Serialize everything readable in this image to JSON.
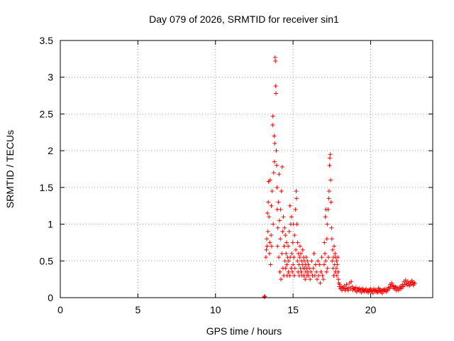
{
  "chart_data": {
    "type": "scatter",
    "title": "Day 079 of 2026, SRMTID for receiver sin1",
    "xlabel": "GPS time / hours",
    "ylabel": "SRMTID / TECUs",
    "xlim": [
      0,
      24
    ],
    "ylim": [
      0,
      3.5
    ],
    "x_ticks": [
      0,
      5,
      10,
      15,
      20
    ],
    "y_ticks": [
      0,
      0.5,
      1,
      1.5,
      2,
      2.5,
      3,
      3.5
    ],
    "x_tick_labels": [
      "0",
      "5",
      "10",
      "15",
      "20"
    ],
    "y_tick_labels": [
      "0",
      "0.5",
      "1",
      "1.5",
      "2",
      "2.5",
      "3",
      "3.5"
    ],
    "grid": true,
    "marker": "+",
    "marker_color": "#ff0000",
    "series": [
      {
        "name": "sin1",
        "points": [
          [
            13.15,
            0.01
          ],
          [
            13.18,
            0.02
          ],
          [
            13.25,
            0.55
          ],
          [
            13.28,
            0.65
          ],
          [
            13.3,
            0.8
          ],
          [
            13.32,
            0.7
          ],
          [
            13.35,
            1.15
          ],
          [
            13.38,
            0.9
          ],
          [
            13.4,
            1.3
          ],
          [
            13.42,
            1.58
          ],
          [
            13.45,
            1.1
          ],
          [
            13.48,
            0.6
          ],
          [
            13.5,
            0.75
          ],
          [
            13.52,
            1.6
          ],
          [
            13.55,
            0.45
          ],
          [
            13.58,
            0.85
          ],
          [
            13.6,
            1.25
          ],
          [
            13.62,
            0.7
          ],
          [
            13.65,
            1.45
          ],
          [
            13.68,
            2.35
          ],
          [
            13.7,
            2.47
          ],
          [
            13.72,
            1.0
          ],
          [
            13.75,
            1.7
          ],
          [
            13.78,
            2.2
          ],
          [
            13.8,
            1.85
          ],
          [
            13.82,
            2.1
          ],
          [
            13.84,
            3.27
          ],
          [
            13.86,
            3.22
          ],
          [
            13.88,
            2.88
          ],
          [
            13.9,
            2.78
          ],
          [
            13.92,
            2.0
          ],
          [
            13.94,
            1.8
          ],
          [
            13.96,
            1.5
          ],
          [
            13.98,
            1.2
          ],
          [
            14.0,
            0.7
          ],
          [
            14.02,
            0.95
          ],
          [
            14.05,
            1.3
          ],
          [
            14.08,
            0.55
          ],
          [
            14.1,
            1.68
          ],
          [
            14.12,
            1.05
          ],
          [
            14.15,
            0.35
          ],
          [
            14.18,
            0.8
          ],
          [
            14.2,
            1.2
          ],
          [
            14.22,
            0.25
          ],
          [
            14.25,
            1.45
          ],
          [
            14.28,
            0.6
          ],
          [
            14.3,
            1.78
          ],
          [
            14.32,
            0.9
          ],
          [
            14.35,
            0.4
          ],
          [
            14.38,
            1.1
          ],
          [
            14.4,
            0.3
          ],
          [
            14.42,
            0.7
          ],
          [
            14.45,
            0.95
          ],
          [
            14.48,
            0.5
          ],
          [
            14.5,
            0.85
          ],
          [
            14.52,
            0.4
          ],
          [
            14.55,
            0.6
          ],
          [
            14.58,
            0.75
          ],
          [
            14.6,
            0.45
          ],
          [
            14.62,
            0.3
          ],
          [
            14.65,
            0.55
          ],
          [
            14.68,
            0.7
          ],
          [
            14.7,
            0.35
          ],
          [
            14.72,
            0.5
          ],
          [
            14.75,
            0.9
          ],
          [
            14.78,
            0.3
          ],
          [
            14.8,
            1.25
          ],
          [
            14.82,
            0.55
          ],
          [
            14.85,
            1.0
          ],
          [
            14.88,
            0.4
          ],
          [
            14.9,
            1.1
          ],
          [
            14.92,
            0.6
          ],
          [
            14.95,
            0.35
          ],
          [
            14.98,
            0.75
          ],
          [
            15.0,
            0.45
          ],
          [
            15.02,
            1.0
          ],
          [
            15.05,
            0.55
          ],
          [
            15.08,
            0.3
          ],
          [
            15.1,
            0.85
          ],
          [
            15.12,
            0.4
          ],
          [
            15.15,
            1.2
          ],
          [
            15.18,
            0.65
          ],
          [
            15.2,
            1.45
          ],
          [
            15.22,
            1.35
          ],
          [
            15.25,
            1.0
          ],
          [
            15.28,
            0.5
          ],
          [
            15.3,
            0.75
          ],
          [
            15.32,
            0.35
          ],
          [
            15.35,
            0.6
          ],
          [
            15.38,
            0.45
          ],
          [
            15.4,
            0.3
          ],
          [
            15.42,
            0.55
          ],
          [
            15.45,
            0.7
          ],
          [
            15.48,
            0.4
          ],
          [
            15.5,
            0.6
          ],
          [
            15.52,
            0.35
          ],
          [
            15.55,
            0.5
          ],
          [
            15.58,
            0.3
          ],
          [
            15.6,
            0.45
          ],
          [
            15.62,
            0.65
          ],
          [
            15.65,
            0.4
          ],
          [
            15.68,
            0.55
          ],
          [
            15.7,
            0.3
          ],
          [
            15.72,
            0.5
          ],
          [
            15.75,
            0.4
          ],
          [
            15.78,
            0.25
          ],
          [
            15.8,
            0.45
          ],
          [
            15.82,
            0.35
          ],
          [
            15.85,
            0.55
          ],
          [
            15.88,
            0.4
          ],
          [
            15.9,
            0.3
          ],
          [
            15.92,
            0.5
          ],
          [
            15.95,
            0.35
          ],
          [
            15.98,
            0.45
          ],
          [
            16.0,
            0.3
          ],
          [
            16.05,
            0.4
          ],
          [
            16.1,
            0.25
          ],
          [
            16.15,
            0.35
          ],
          [
            16.2,
            0.5
          ],
          [
            16.25,
            0.3
          ],
          [
            16.3,
            0.4
          ],
          [
            16.35,
            0.6
          ],
          [
            16.4,
            0.3
          ],
          [
            16.45,
            0.45
          ],
          [
            16.5,
            0.35
          ],
          [
            16.55,
            0.25
          ],
          [
            16.6,
            0.5
          ],
          [
            16.65,
            0.3
          ],
          [
            16.7,
            0.45
          ],
          [
            16.75,
            0.2
          ],
          [
            16.8,
            0.35
          ],
          [
            16.85,
            0.55
          ],
          [
            16.9,
            0.3
          ],
          [
            16.95,
            0.25
          ],
          [
            17.0,
            0.45
          ],
          [
            17.02,
            0.75
          ],
          [
            17.05,
            0.6
          ],
          [
            17.08,
            1.1
          ],
          [
            17.1,
            0.5
          ],
          [
            17.12,
            1.2
          ],
          [
            17.15,
            0.35
          ],
          [
            17.18,
            0.8
          ],
          [
            17.2,
            1.0
          ],
          [
            17.22,
            0.4
          ],
          [
            17.25,
            1.2
          ],
          [
            17.28,
            0.55
          ],
          [
            17.3,
            1.35
          ],
          [
            17.32,
            1.45
          ],
          [
            17.35,
            1.8
          ],
          [
            17.37,
            1.9
          ],
          [
            17.4,
            1.95
          ],
          [
            17.42,
            1.6
          ],
          [
            17.45,
            1.3
          ],
          [
            17.48,
            0.95
          ],
          [
            17.5,
            0.8
          ],
          [
            17.52,
            0.5
          ],
          [
            17.55,
            0.65
          ],
          [
            17.58,
            0.4
          ],
          [
            17.6,
            0.55
          ],
          [
            17.62,
            0.3
          ],
          [
            17.65,
            0.7
          ],
          [
            17.68,
            0.45
          ],
          [
            17.7,
            0.6
          ],
          [
            17.72,
            0.35
          ],
          [
            17.75,
            0.55
          ],
          [
            17.78,
            0.4
          ],
          [
            17.8,
            0.5
          ],
          [
            17.82,
            0.3
          ],
          [
            17.85,
            0.45
          ],
          [
            17.88,
            0.55
          ],
          [
            17.9,
            0.35
          ],
          [
            17.92,
            0.25
          ],
          [
            17.95,
            0.2
          ],
          [
            17.98,
            0.15
          ],
          [
            18.0,
            0.18
          ],
          [
            18.05,
            0.12
          ],
          [
            18.1,
            0.15
          ],
          [
            18.15,
            0.1
          ],
          [
            18.2,
            0.14
          ],
          [
            18.25,
            0.12
          ],
          [
            18.3,
            0.16
          ],
          [
            18.35,
            0.1
          ],
          [
            18.4,
            0.13
          ],
          [
            18.45,
            0.18
          ],
          [
            18.5,
            0.12
          ],
          [
            18.55,
            0.1
          ],
          [
            18.6,
            0.14
          ],
          [
            18.65,
            0.2
          ],
          [
            18.7,
            0.12
          ],
          [
            18.75,
            0.22
          ],
          [
            18.8,
            0.15
          ],
          [
            18.85,
            0.1
          ],
          [
            18.9,
            0.13
          ],
          [
            18.95,
            0.12
          ],
          [
            19.0,
            0.1
          ],
          [
            19.05,
            0.14
          ],
          [
            19.1,
            0.08
          ],
          [
            19.15,
            0.12
          ],
          [
            19.2,
            0.1
          ],
          [
            19.25,
            0.13
          ],
          [
            19.3,
            0.09
          ],
          [
            19.35,
            0.11
          ],
          [
            19.4,
            0.07
          ],
          [
            19.45,
            0.12
          ],
          [
            19.5,
            0.09
          ],
          [
            19.55,
            0.11
          ],
          [
            19.6,
            0.08
          ],
          [
            19.65,
            0.1
          ],
          [
            19.7,
            0.12
          ],
          [
            19.75,
            0.08
          ],
          [
            19.8,
            0.1
          ],
          [
            19.85,
            0.07
          ],
          [
            19.9,
            0.11
          ],
          [
            19.95,
            0.09
          ],
          [
            20.0,
            0.12
          ],
          [
            20.05,
            0.08
          ],
          [
            20.1,
            0.1
          ],
          [
            20.15,
            0.06
          ],
          [
            20.2,
            0.12
          ],
          [
            20.25,
            0.09
          ],
          [
            20.3,
            0.11
          ],
          [
            20.35,
            0.08
          ],
          [
            20.4,
            0.1
          ],
          [
            20.45,
            0.07
          ],
          [
            20.5,
            0.13
          ],
          [
            20.55,
            0.09
          ],
          [
            20.6,
            0.12
          ],
          [
            20.65,
            0.08
          ],
          [
            20.7,
            0.1
          ],
          [
            20.75,
            0.06
          ],
          [
            20.8,
            0.11
          ],
          [
            20.85,
            0.09
          ],
          [
            20.9,
            0.12
          ],
          [
            20.95,
            0.1
          ],
          [
            21.0,
            0.08
          ],
          [
            21.05,
            0.12
          ],
          [
            21.1,
            0.1
          ],
          [
            21.15,
            0.14
          ],
          [
            21.2,
            0.12
          ],
          [
            21.25,
            0.18
          ],
          [
            21.3,
            0.15
          ],
          [
            21.35,
            0.2
          ],
          [
            21.4,
            0.17
          ],
          [
            21.45,
            0.13
          ],
          [
            21.5,
            0.16
          ],
          [
            21.55,
            0.12
          ],
          [
            21.6,
            0.15
          ],
          [
            21.65,
            0.1
          ],
          [
            21.7,
            0.14
          ],
          [
            21.75,
            0.12
          ],
          [
            21.8,
            0.1
          ],
          [
            21.85,
            0.14
          ],
          [
            21.9,
            0.12
          ],
          [
            21.95,
            0.16
          ],
          [
            22.0,
            0.13
          ],
          [
            22.05,
            0.18
          ],
          [
            22.1,
            0.15
          ],
          [
            22.15,
            0.22
          ],
          [
            22.2,
            0.18
          ],
          [
            22.25,
            0.24
          ],
          [
            22.3,
            0.2
          ],
          [
            22.35,
            0.17
          ],
          [
            22.4,
            0.22
          ],
          [
            22.45,
            0.19
          ],
          [
            22.5,
            0.16
          ],
          [
            22.55,
            0.21
          ],
          [
            22.6,
            0.18
          ],
          [
            22.65,
            0.23
          ],
          [
            22.7,
            0.2
          ],
          [
            22.75,
            0.17
          ],
          [
            22.8,
            0.21
          ],
          [
            22.85,
            0.19
          ]
        ]
      }
    ]
  }
}
